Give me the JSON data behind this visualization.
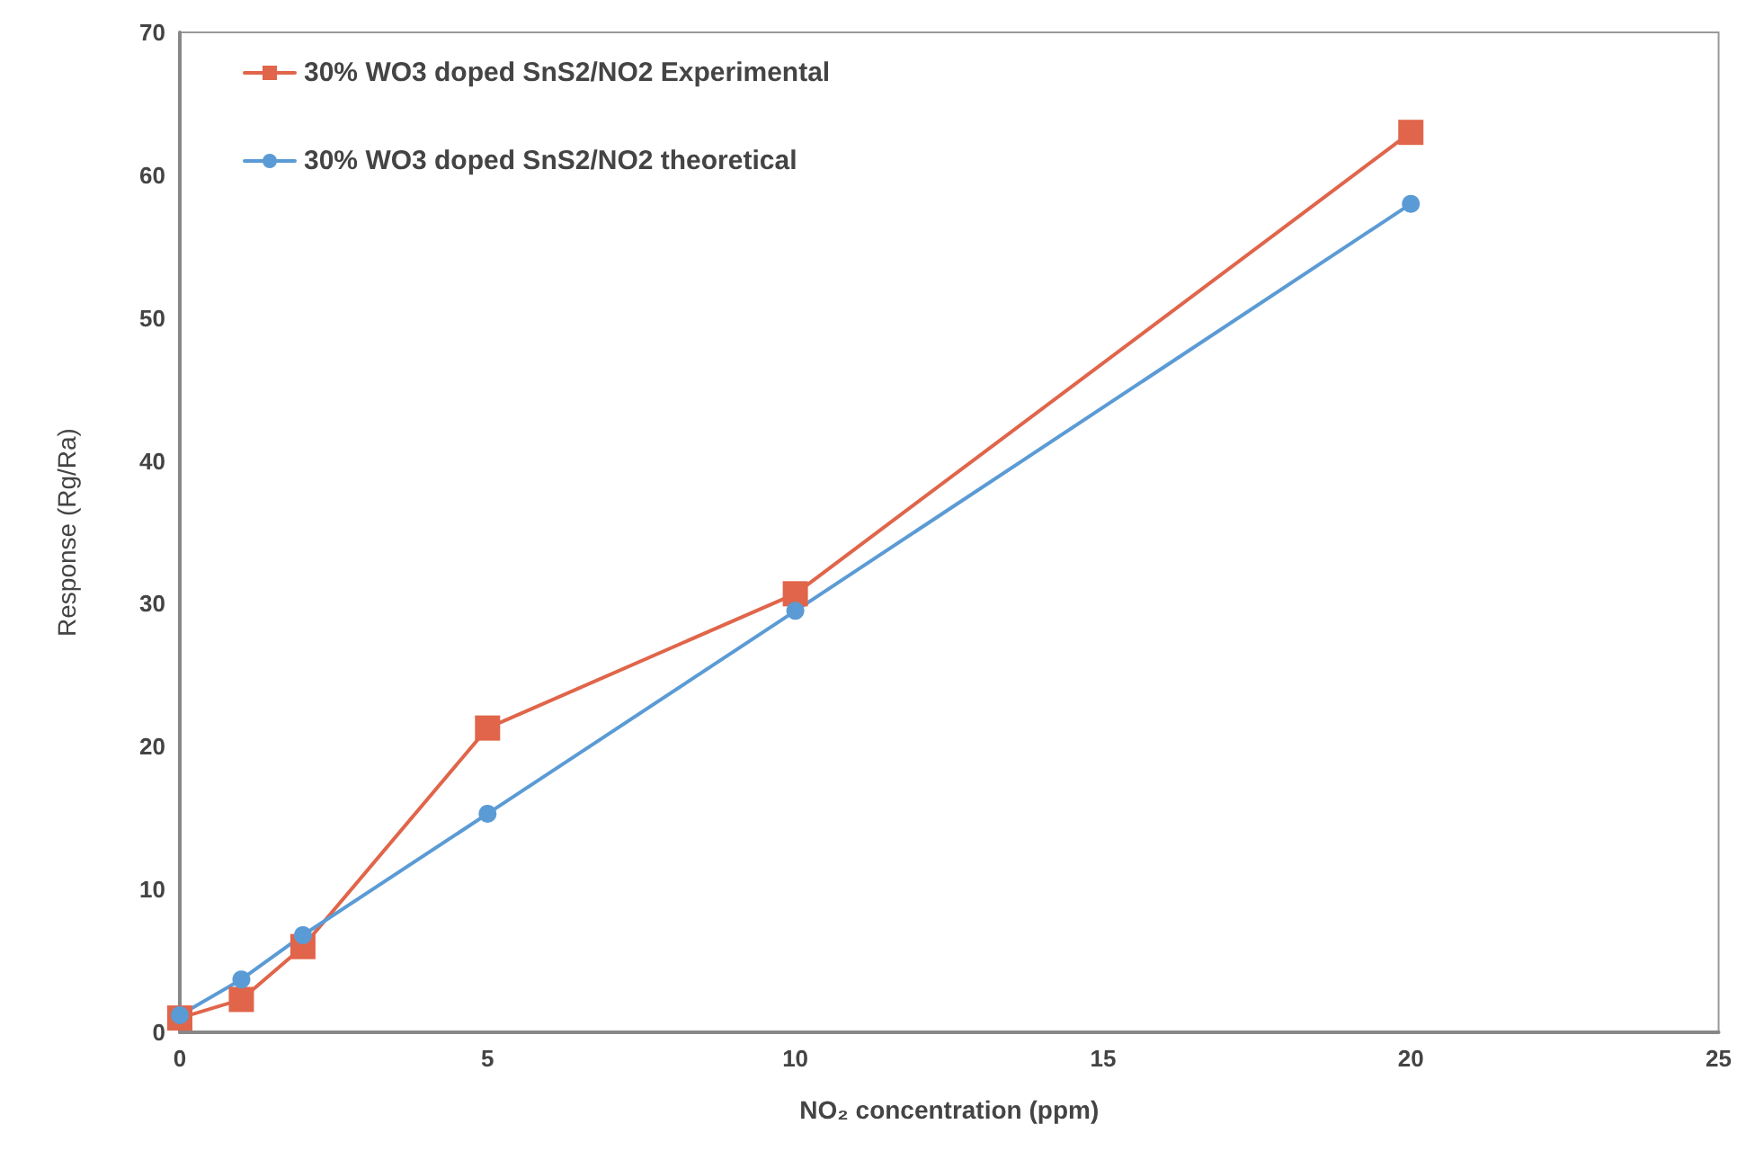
{
  "chart_data": {
    "type": "line",
    "xlabel": "NO₂ concentration (ppm)",
    "ylabel": "Response (Rg/Ra)",
    "xlim": [
      0,
      25
    ],
    "xticks": [
      0,
      5,
      10,
      15,
      20,
      25
    ],
    "ylim": [
      0,
      70
    ],
    "yticks": [
      0,
      10,
      20,
      30,
      40,
      50,
      60,
      70
    ],
    "grid": false,
    "legend": "top left",
    "line_style": "solid",
    "series": [
      {
        "name": "30% WO3 doped SnS2/NO2 Experimental",
        "color": "#e0654a",
        "marker": "square",
        "x": [
          0,
          1,
          2,
          5,
          10,
          20
        ],
        "values": [
          1.0,
          2.3,
          6.0,
          21.3,
          30.7,
          63.0
        ]
      },
      {
        "name": "30% WO3 doped SnS2/NO2 theoretical",
        "color": "#5b9bd5",
        "marker": "circle",
        "x": [
          0,
          1,
          2,
          5,
          10,
          20
        ],
        "values": [
          1.2,
          3.7,
          6.8,
          15.3,
          29.5,
          58.0
        ]
      }
    ]
  }
}
